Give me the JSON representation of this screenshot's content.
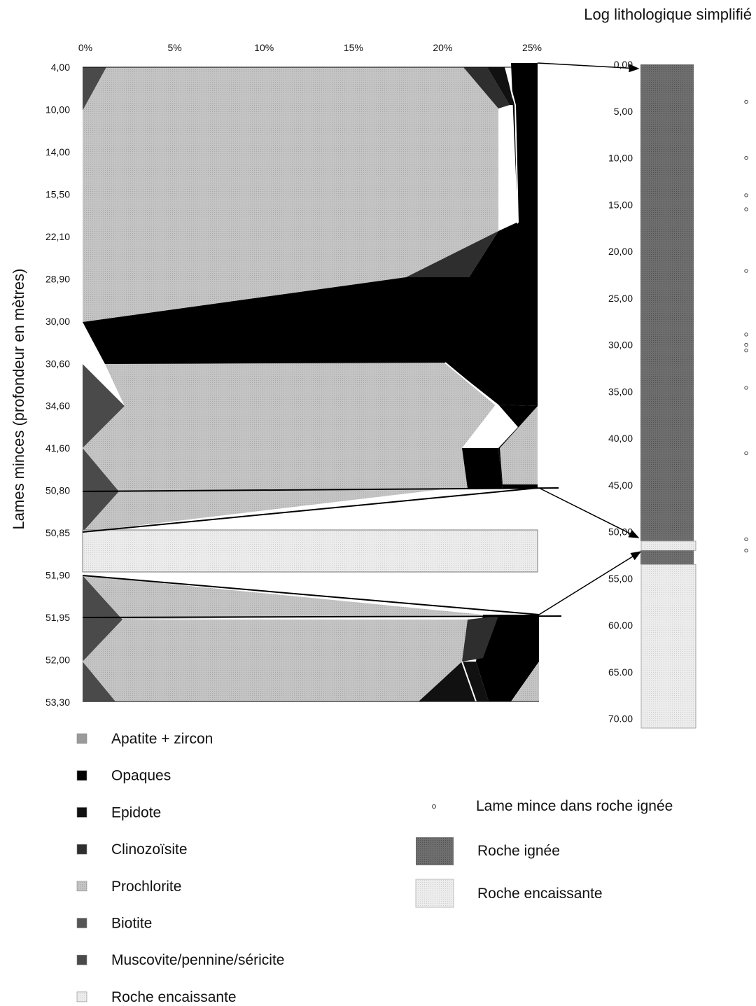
{
  "chart_data": [
    {
      "type": "area",
      "subtype": "stacked-percent-by-depth",
      "x": {
        "ticks": [
          "0%",
          "5%",
          "10%",
          "15%",
          "20%",
          "25%"
        ],
        "values": [
          0,
          5,
          10,
          15,
          20,
          25
        ],
        "range": [
          0,
          25
        ]
      },
      "y": {
        "label": "Lames minces (profondeur en mètres)",
        "categories": [
          "4,00",
          "10,00",
          "14,00",
          "15,50",
          "22,10",
          "28,90",
          "30,00",
          "30,60",
          "34,60",
          "41,60",
          "50,80",
          "50,85",
          "51,90",
          "51,95",
          "52,00",
          "53,30"
        ]
      },
      "legend": [
        {
          "name": "Apatite + zircon",
          "color": "#a9a9a9"
        },
        {
          "name": "Opaques",
          "color": "#000000"
        },
        {
          "name": "Epidote",
          "color": "#111111"
        },
        {
          "name": "Clinozoïsite",
          "color": "#2e2e2e"
        },
        {
          "name": "Prochlorite",
          "color": "#bdbdbd"
        },
        {
          "name": "Biotite",
          "color": "#555555"
        },
        {
          "name": "Muscovite/pennine/séricite",
          "color": "#4a4a4a"
        },
        {
          "name": "Roche encaissante",
          "color": "#e4e4e4"
        }
      ],
      "legend_placement": "bottom-left",
      "grid": false
    },
    {
      "type": "bar",
      "subtype": "lithological-log",
      "title": "Log lithologique simplifié",
      "y_ticks": [
        "0,00",
        "5,00",
        "10,00",
        "15,00",
        "20,00",
        "25,00",
        "30,00",
        "35,00",
        "40,00",
        "45,00",
        "50,00",
        "55,00",
        "60.00",
        "65.00",
        "70.00"
      ],
      "segments": [
        {
          "from": 0,
          "to": 51,
          "class": "Roche ignée"
        },
        {
          "from": 51,
          "to": 52,
          "class": "Roche encaissante"
        },
        {
          "from": 52,
          "to": 53.5,
          "class": "Roche ignée"
        },
        {
          "from": 53.5,
          "to": 71,
          "class": "Roche encaissante"
        }
      ],
      "sample_depths": [
        4.0,
        10.0,
        14.0,
        15.5,
        22.1,
        28.9,
        30.0,
        30.6,
        34.6,
        41.6,
        50.8,
        52.0
      ],
      "legend": [
        {
          "name": "Lame mince dans roche ignée",
          "symbol": "circle"
        },
        {
          "name": "Roche ignée",
          "color": "#6a6a6a"
        },
        {
          "name": "Roche encaissante",
          "color": "#e2e2e2"
        }
      ],
      "legend_placement": "bottom-right"
    }
  ]
}
